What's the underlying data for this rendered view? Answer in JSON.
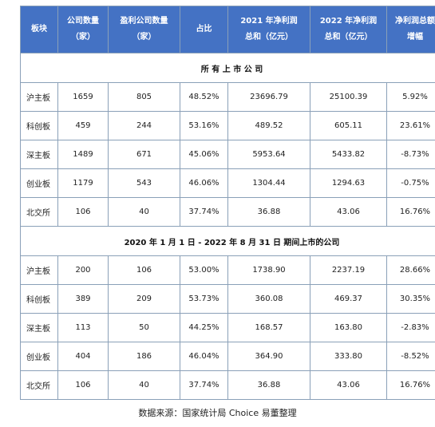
{
  "columns": [
    {
      "line1": "板块",
      "line2": ""
    },
    {
      "line1": "公司数量",
      "line2": "（家）"
    },
    {
      "line1": "盈利公司数量",
      "line2": "（家）"
    },
    {
      "line1": "占比",
      "line2": ""
    },
    {
      "line1": "2021 年净利润",
      "line2": "总和（亿元）"
    },
    {
      "line1": "2022 年净利润",
      "line2": "总和（亿元）"
    },
    {
      "line1": "净利润总额",
      "line2": "增幅"
    }
  ],
  "sections": [
    {
      "title": "所 有 上 市 公 司",
      "rows": [
        {
          "board": "沪主板",
          "count": "1659",
          "profitable": "805",
          "ratio": "48.52%",
          "profit2021": "23696.79",
          "profit2022": "25100.39",
          "growth": "5.92%"
        },
        {
          "board": "科创板",
          "count": "459",
          "profitable": "244",
          "ratio": "53.16%",
          "profit2021": "489.52",
          "profit2022": "605.11",
          "growth": "23.61%"
        },
        {
          "board": "深主板",
          "count": "1489",
          "profitable": "671",
          "ratio": "45.06%",
          "profit2021": "5953.64",
          "profit2022": "5433.82",
          "growth": "-8.73%"
        },
        {
          "board": "创业板",
          "count": "1179",
          "profitable": "543",
          "ratio": "46.06%",
          "profit2021": "1304.44",
          "profit2022": "1294.63",
          "growth": "-0.75%"
        },
        {
          "board": "北交所",
          "count": "106",
          "profitable": "40",
          "ratio": "37.74%",
          "profit2021": "36.88",
          "profit2022": "43.06",
          "growth": "16.76%"
        }
      ]
    },
    {
      "title": "2020 年 1 月 1 日  - 2022 年 8 月 31 日 期间上市的公司",
      "rows": [
        {
          "board": "沪主板",
          "count": "200",
          "profitable": "106",
          "ratio": "53.00%",
          "profit2021": "1738.90",
          "profit2022": "2237.19",
          "growth": "28.66%"
        },
        {
          "board": "科创板",
          "count": "389",
          "profitable": "209",
          "ratio": "53.73%",
          "profit2021": "360.08",
          "profit2022": "469.37",
          "growth": "30.35%"
        },
        {
          "board": "深主板",
          "count": "113",
          "profitable": "50",
          "ratio": "44.25%",
          "profit2021": "168.57",
          "profit2022": "163.80",
          "growth": "-2.83%"
        },
        {
          "board": "创业板",
          "count": "404",
          "profitable": "186",
          "ratio": "46.04%",
          "profit2021": "364.90",
          "profit2022": "333.80",
          "growth": "-8.52%"
        },
        {
          "board": "北交所",
          "count": "106",
          "profitable": "40",
          "ratio": "37.74%",
          "profit2021": "36.88",
          "profit2022": "43.06",
          "growth": "16.76%"
        }
      ]
    }
  ],
  "source": "数据来源：国家统计局  Choice  易董整理",
  "colors": {
    "header_bg": "#4472c4",
    "header_text": "#ffffff",
    "border": "#8aa0b8"
  }
}
